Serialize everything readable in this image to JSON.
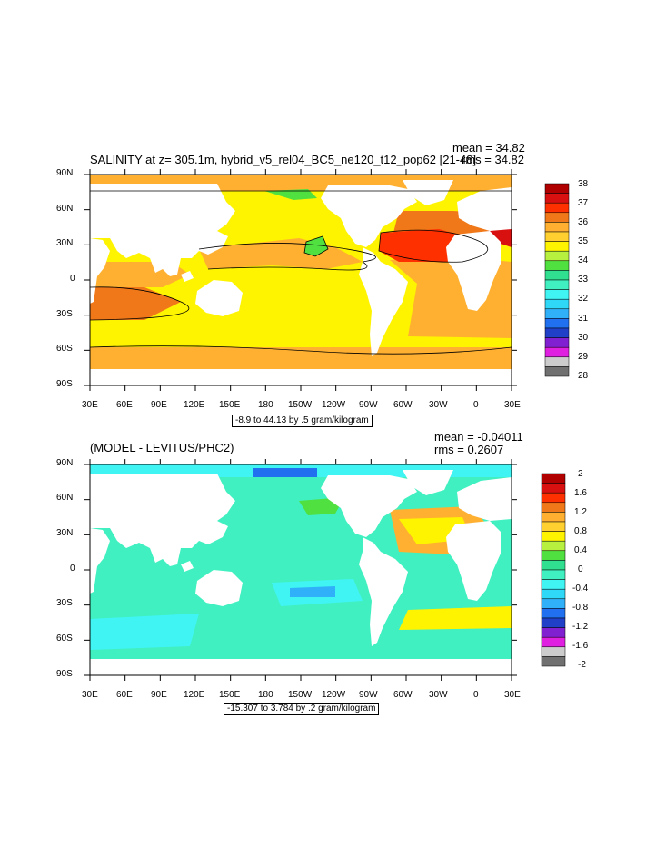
{
  "panels": [
    {
      "title": "SALINITY at z= 305.1m, hybrid_v5_rel04_BC5_ne120_t12_pop62 [21-48]",
      "mean": "mean = 34.82",
      "rms": "rms = 34.82",
      "range_label": "-8.9 to 44.13 by .5 gram/kilogram",
      "legend": {
        "labels": [
          "38",
          "37",
          "36",
          "35",
          "34",
          "33",
          "32",
          "31",
          "30",
          "29",
          "28"
        ],
        "colors": [
          "#b00000",
          "#d81010",
          "#ff3000",
          "#f07818",
          "#ffb030",
          "#ffd030",
          "#fff400",
          "#b8f040",
          "#50e040",
          "#30e090",
          "#40f0c0",
          "#40f4f4",
          "#30d8f8",
          "#30b0f8",
          "#2070f0",
          "#2040c8",
          "#8020d0",
          "#e020e0",
          "#cccccc",
          "#707070"
        ]
      }
    },
    {
      "title": "(MODEL - LEVITUS/PHC2)",
      "mean": "mean = -0.04011",
      "rms": "rms = 0.2607",
      "range_label": "-15.307 to 3.784 by .2 gram/kilogram",
      "legend": {
        "labels": [
          "2",
          "1.6",
          "1.2",
          "0.8",
          "0.4",
          "0",
          "-0.4",
          "-0.8",
          "-1.2",
          "-1.6",
          "-2"
        ],
        "colors": [
          "#b00000",
          "#d81010",
          "#ff3000",
          "#f07818",
          "#ffb030",
          "#ffd030",
          "#fff400",
          "#b8f040",
          "#50e040",
          "#30e090",
          "#40f0c0",
          "#40f4f4",
          "#30d8f8",
          "#30b0f8",
          "#2070f0",
          "#2040c8",
          "#8020d0",
          "#e020e0",
          "#cccccc",
          "#707070"
        ]
      }
    }
  ],
  "axes": {
    "lat_labels": [
      "90N",
      "60N",
      "30N",
      "0",
      "30S",
      "60S",
      "90S"
    ],
    "lon_labels": [
      "30E",
      "60E",
      "90E",
      "120E",
      "150E",
      "180",
      "150W",
      "120W",
      "90W",
      "60W",
      "30W",
      "0",
      "30E"
    ]
  },
  "colors": {
    "top_field": "#fff400",
    "top_orange": "#ffb030",
    "top_high": "#f07818",
    "top_max": "#ff3000",
    "top_low": "#50e040",
    "diff_field": "#40f0c0",
    "diff_cyan": "#40f4f4",
    "diff_blue": "#30b0f8",
    "diff_pos": "#fff400",
    "diff_orange": "#ffb030",
    "diff_green": "#50e040"
  }
}
